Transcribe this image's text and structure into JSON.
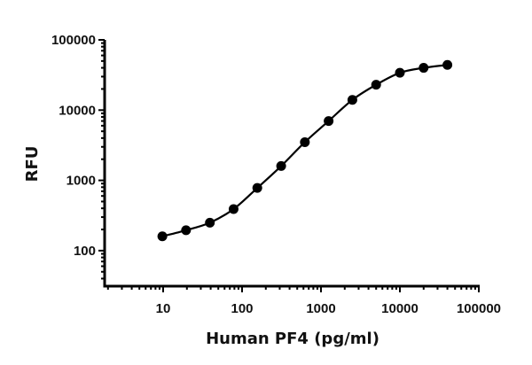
{
  "chart_data": {
    "type": "line",
    "title": "",
    "xlabel": "Human PF4 (pg/ml)",
    "ylabel": "RFU",
    "xscale": "log",
    "yscale": "log",
    "xlim": [
      2,
      100000
    ],
    "ylim": [
      40,
      100000
    ],
    "x_ticks": [
      "10",
      "100",
      "1000",
      "10000",
      "100000"
    ],
    "y_ticks": [
      "100",
      "1000",
      "10000",
      "100000"
    ],
    "grid": false,
    "legend": null,
    "series": [
      {
        "name": "Human PF4",
        "marker": "circle",
        "line": "smooth fitted curve",
        "color": "#000000",
        "x": [
          9.77,
          19.5,
          39.1,
          78.1,
          156,
          313,
          625,
          1250,
          2500,
          5000,
          10000,
          20000,
          40000
        ],
        "values": [
          160,
          195,
          250,
          390,
          780,
          1600,
          3500,
          7000,
          14000,
          23000,
          34000,
          40000,
          44000
        ]
      }
    ]
  }
}
